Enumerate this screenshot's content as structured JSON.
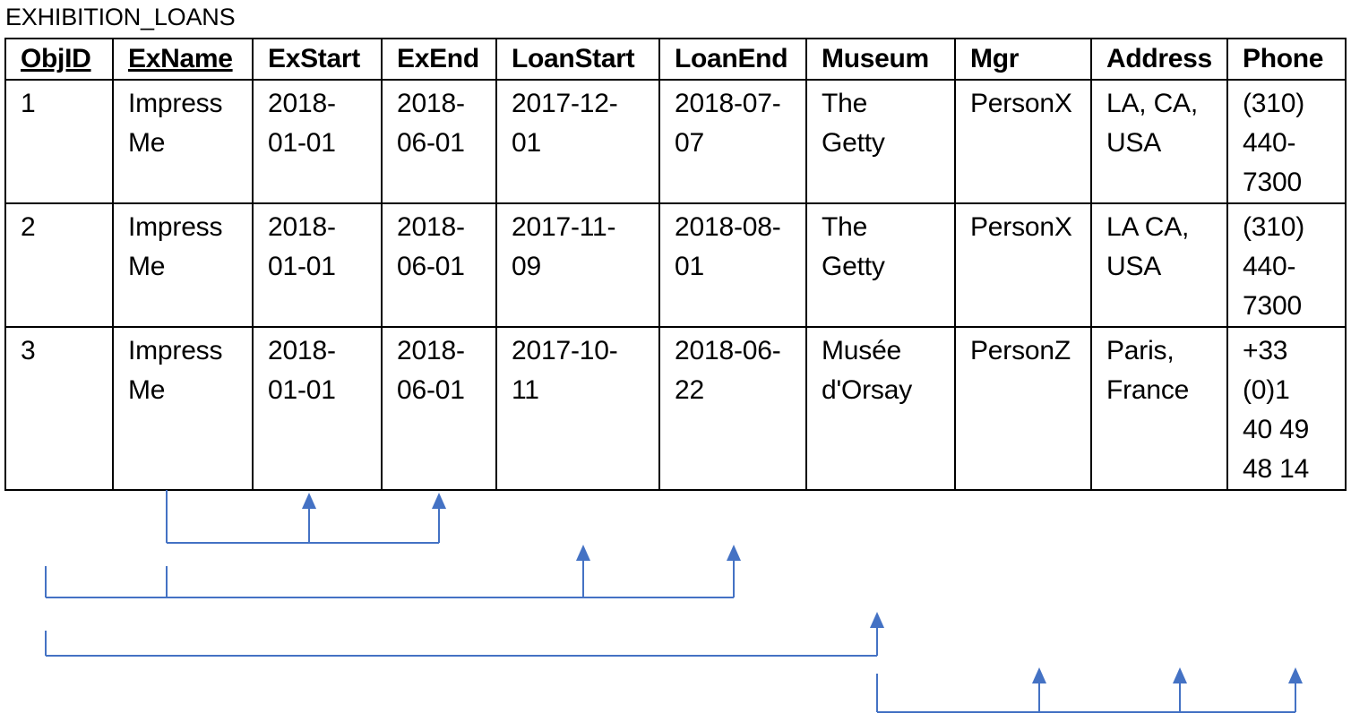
{
  "title": "EXHIBITION_LOANS",
  "colors": {
    "arrow": "#4472C4",
    "border": "#000000"
  },
  "columns": [
    {
      "label": "ObjID",
      "key": true
    },
    {
      "label": "ExName",
      "key": true
    },
    {
      "label": "ExStart",
      "key": false
    },
    {
      "label": "ExEnd",
      "key": false
    },
    {
      "label": "LoanStart",
      "key": false
    },
    {
      "label": "LoanEnd",
      "key": false
    },
    {
      "label": "Museum",
      "key": false
    },
    {
      "label": "Mgr",
      "key": false
    },
    {
      "label": "Address",
      "key": false
    },
    {
      "label": "Phone",
      "key": false
    }
  ],
  "rows": [
    [
      [
        "1"
      ],
      [
        "Impress",
        "Me"
      ],
      [
        "2018-",
        "01-01"
      ],
      [
        "2018-",
        "06-01"
      ],
      [
        "2017-12-",
        "01"
      ],
      [
        "2018-07-",
        "07"
      ],
      [
        "The",
        "Getty"
      ],
      [
        "PersonX"
      ],
      [
        "LA, CA,",
        "USA"
      ],
      [
        "(310)",
        "440-",
        "7300"
      ]
    ],
    [
      [
        "2"
      ],
      [
        "Impress",
        "Me"
      ],
      [
        "2018-",
        "01-01"
      ],
      [
        "2018-",
        "06-01"
      ],
      [
        "2017-11-",
        "09"
      ],
      [
        "2018-08-",
        "01"
      ],
      [
        "The",
        "Getty"
      ],
      [
        "PersonX"
      ],
      [
        "LA CA,",
        "USA"
      ],
      [
        "(310)",
        "440-",
        "7300"
      ]
    ],
    [
      [
        "3"
      ],
      [
        "Impress",
        "Me"
      ],
      [
        "2018-",
        "01-01"
      ],
      [
        "2018-",
        "06-01"
      ],
      [
        "2017-10-",
        "11"
      ],
      [
        "2018-06-",
        "22"
      ],
      [
        "Musée",
        "d'Orsay"
      ],
      [
        "PersonZ"
      ],
      [
        "Paris,",
        "France"
      ],
      [
        "+33",
        "(0)1",
        "40 49",
        "48 14"
      ]
    ]
  ],
  "dependencies": [
    {
      "determinants": [
        "ExName"
      ],
      "dependents": [
        "ExStart",
        "ExEnd"
      ]
    },
    {
      "determinants": [
        "ObjID",
        "ExName"
      ],
      "dependents": [
        "LoanStart",
        "LoanEnd"
      ]
    },
    {
      "determinants": [
        "ObjID"
      ],
      "dependents": [
        "Museum"
      ]
    },
    {
      "determinants": [
        "Museum"
      ],
      "dependents": [
        "Mgr",
        "Address",
        "Phone"
      ]
    }
  ]
}
